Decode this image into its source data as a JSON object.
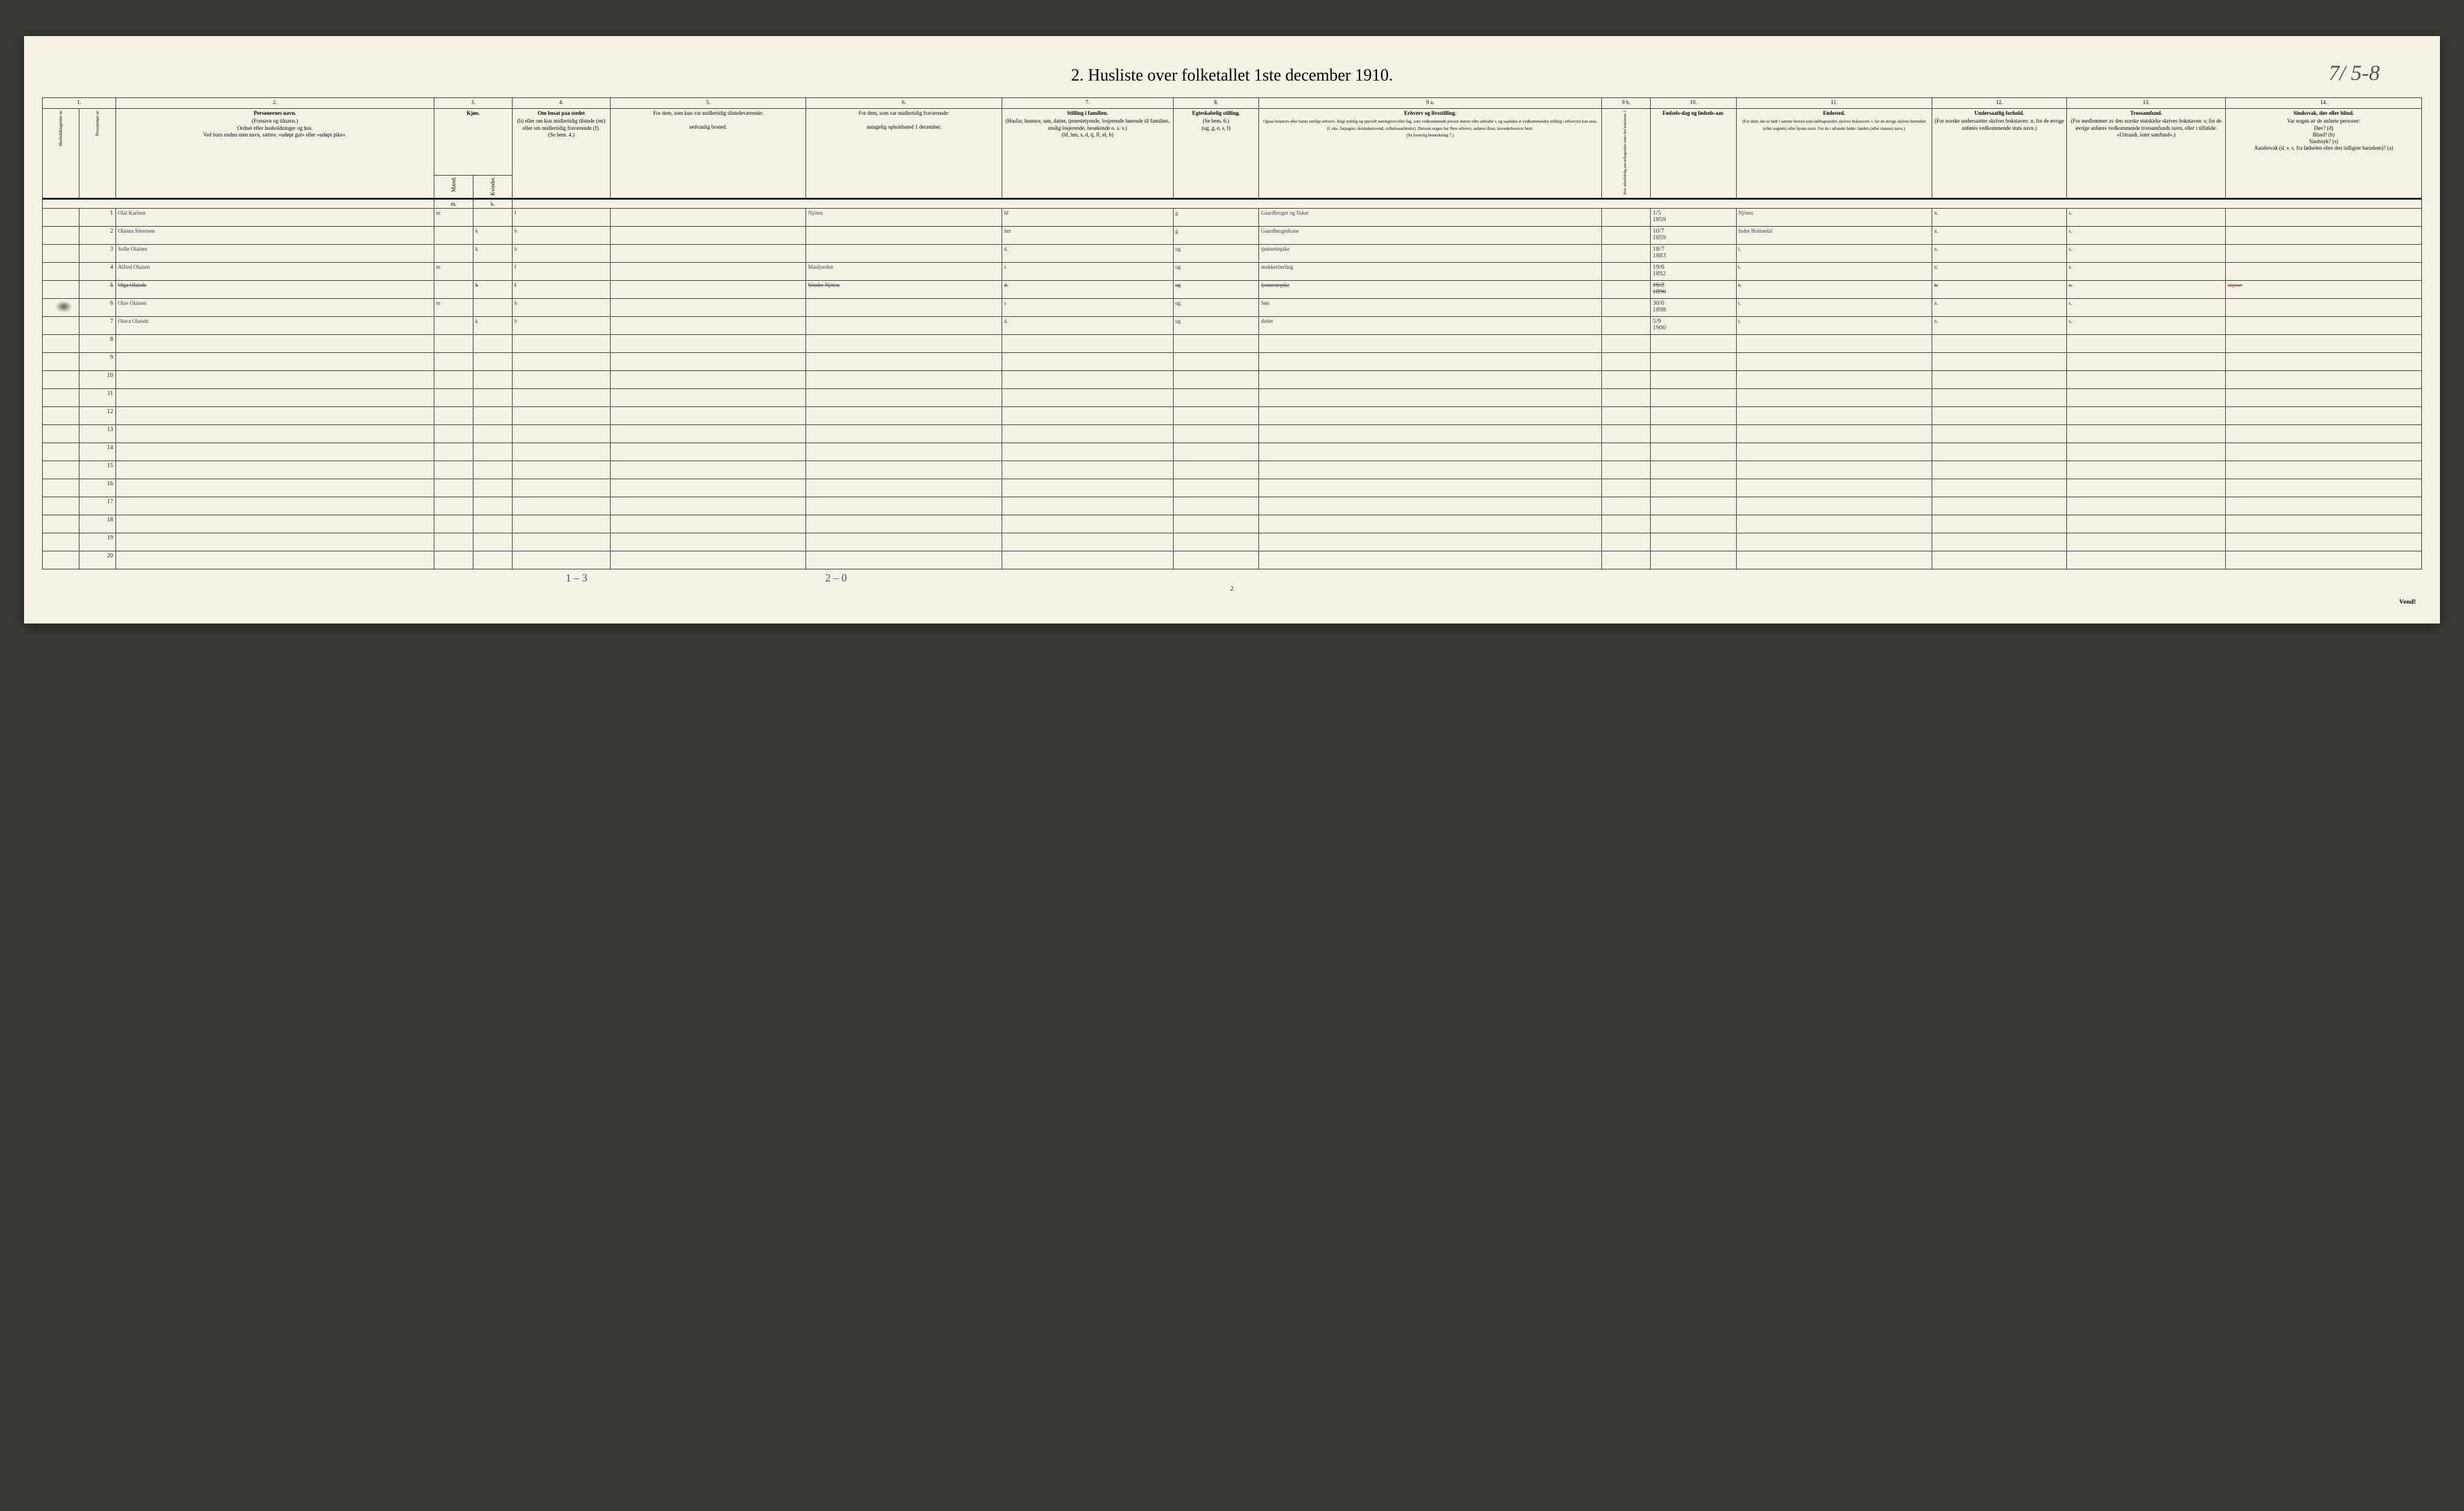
{
  "title": "2.  Husliste over folketallet 1ste december 1910.",
  "handwritten_top": "7/ 5-8",
  "bottom_note_1": "1 – 3",
  "bottom_note_2": "2 – 0",
  "page_number_small": "2",
  "vend": "Vend!",
  "col_numbers": [
    "1.",
    "",
    "2.",
    "3.",
    "",
    "4.",
    "5.",
    "6.",
    "7.",
    "8.",
    "9 a.",
    "9 b.",
    "10.",
    "11.",
    "12.",
    "13.",
    "14."
  ],
  "headers": {
    "c1": "Husholdningernes nr.",
    "c1b": "Personernes nr.",
    "c2_main": "Personernes navn.",
    "c2_sub": "(Fornavn og tilnavn.)\nOrdnet efter husholdninger og hus.\nVed barn endnu uten navn, sættes: «udøpt gut» eller «udøpt pike».",
    "c3_main": "Kjøn.",
    "c3a": "Mænd.",
    "c3b": "Kvinder.",
    "c4_main": "Om bosat paa stedet",
    "c4_sub": "(b) eller om kun midlertidig tilstede (mt) eller om midlertidig fraværende (f).\n(Se bem. 4.)",
    "c5_main": "For dem, som kun var midlertidig tilstedeværende:",
    "c5_sub": "sedvanlig bosted.",
    "c6_main": "For dem, som var midlertidig fraværende:",
    "c6_sub": "antagelig opholdssted 1 december.",
    "c7_main": "Stilling i familien.",
    "c7_sub": "(Husfar, husmor, søn, datter, tjenestetyende, losjerende hørende til familien, enslig losjerende, besøkende o. s. v.)\n(hf, hm, s, d, tj, fl, el, b)",
    "c8_main": "Egteskabelig stilling.",
    "c8_sub": "(Se bem. 6.)\n(ug, g, e, s, f)",
    "c9a_main": "Erhverv og livsstilling.",
    "c9a_sub": "Ogsaa husmors eller barns særlige erhverv. Angi tydelig og specielt næringsvei eller fag, som vedkommende person utøver eller arbeider i, og saaledes at vedkommendes stilling i erhvervet kan sees, (f. eks. forpagter, skomakersvend, cellulosearbeider). Dersom nogen har flere erhverv, anføres disse, hovederhvervet først.\n(Se forøvrig bemerkning 7.)",
    "c9b": "Hvis arbeidsledig paa tællingstiden settes her bokstaven: l.",
    "c10_main": "Fødsels-dag og fødsels-aar.",
    "c11_main": "Fødested.",
    "c11_sub": "(For dem, der er født i samme herred som tællingsstedet, skrives bokstaven: t; for de øvrige skrives herredets (eller sognets) eller byens navn. For de i utlandet fødte: landets (eller statens) navn.)",
    "c12_main": "Undersaatlig forhold.",
    "c12_sub": "(For norske undersaatter skrives bokstaven: n; for de øvrige anføres vedkommende stats navn.)",
    "c13_main": "Trossamfund.",
    "c13_sub": "(For medlemmer av den norske statskirke skrives bokstaven: s; for de øvrige anføres vedkommende trossamfunds navn, eller i tilfælde: «Uttraadt, intet samfund».)",
    "c14_main": "Sindssvak, døv eller blind.",
    "c14_sub": "Var nogen av de anførte personer:\nDøv? (d)\nBlind? (b)\nSindssyk? (s)\nAandssvak (d. v. s. fra fødselen eller den tidligste barndom)? (a)"
  },
  "sub_labels": {
    "m": "m.",
    "k": "k."
  },
  "rows": [
    {
      "hh": "",
      "pn": "1",
      "name": "Olai Karlsen",
      "m": "m",
      "k": "",
      "bf": "f",
      "c5": "",
      "c6": "Njöten",
      "c7": "hf",
      "c8": "g",
      "c9a": "Gaardbruger og fisker",
      "c9b": "",
      "c10_top": "1/5",
      "c10": "1859",
      "c11": "Njöten",
      "c12": "n.",
      "c13": "s.",
      "c14": ""
    },
    {
      "hh": "",
      "pn": "2",
      "name": "Olanna Sörensen",
      "m": "",
      "k": "k",
      "bf": "b",
      "c5": "",
      "c6": "",
      "c7": "hm",
      "c8": "g",
      "c9a": "Gaardbrugerkone",
      "c9b": "",
      "c10_top": "10/7",
      "c10": "1859",
      "c11": "Indre Holmedal",
      "c12": "n.",
      "c13": "s.",
      "c14": ""
    },
    {
      "hh": "",
      "pn": "3",
      "name": "Sofie Olaisen",
      "m": "",
      "k": "k",
      "bf": "b",
      "c5": "",
      "c6": "",
      "c7": "d.",
      "c8": "ug",
      "c9a": "tjennestepike",
      "c9b": "",
      "c10_top": "18/7",
      "c10": "1883",
      "c11": "t.",
      "c12": "n.",
      "c13": "s.",
      "c14": ""
    },
    {
      "hh": "",
      "pn": "4",
      "name": "Alfred Olaisen",
      "m": "m",
      "k": "",
      "bf": "f",
      "c5": "",
      "c6": "Masfjorden",
      "c7": "s",
      "c8": "ug",
      "c9a": "snekkerlærling",
      "c9b": "",
      "c10_top": "19/6",
      "c10": "1892",
      "c11": "t.",
      "c12": "n.",
      "c13": "s.",
      "c14": ""
    },
    {
      "hh": "",
      "pn": "5",
      "name": "Olga Olaisdr.",
      "m": "",
      "k": "k",
      "bf": "f",
      "c5": "",
      "c6": "Söndre Njöten",
      "c7": "d.",
      "c8": "ug",
      "c9a": "tjennestepike",
      "c9b": "",
      "c10_top": "16/2",
      "c10": "1896",
      "c11": "t.",
      "c12": "n.",
      "c13": "s.",
      "c14": "utgaar",
      "strike": true
    },
    {
      "hh": "",
      "pn": "6",
      "name": "Olav Olaisen",
      "m": "m",
      "k": "",
      "bf": "b",
      "c5": "",
      "c6": "",
      "c7": "s",
      "c8": "ug",
      "c9a": "Søn",
      "c9b": "",
      "c10_top": "30/6",
      "c10": "1898",
      "c11": "t.",
      "c12": "n.",
      "c13": "s.",
      "c14": ""
    },
    {
      "hh": "",
      "pn": "7",
      "name": "Olava Olaisdr.",
      "m": "",
      "k": "k",
      "bf": "b",
      "c5": "",
      "c6": "",
      "c7": "d.",
      "c8": "ug",
      "c9a": "datter",
      "c9b": "",
      "c10_top": "5/9",
      "c10": "1900",
      "c11": "t.",
      "c12": "n.",
      "c13": "s.",
      "c14": ""
    }
  ],
  "empty_rows": [
    8,
    9,
    10,
    11,
    12,
    13,
    14,
    15,
    16,
    17,
    18,
    19,
    20
  ]
}
